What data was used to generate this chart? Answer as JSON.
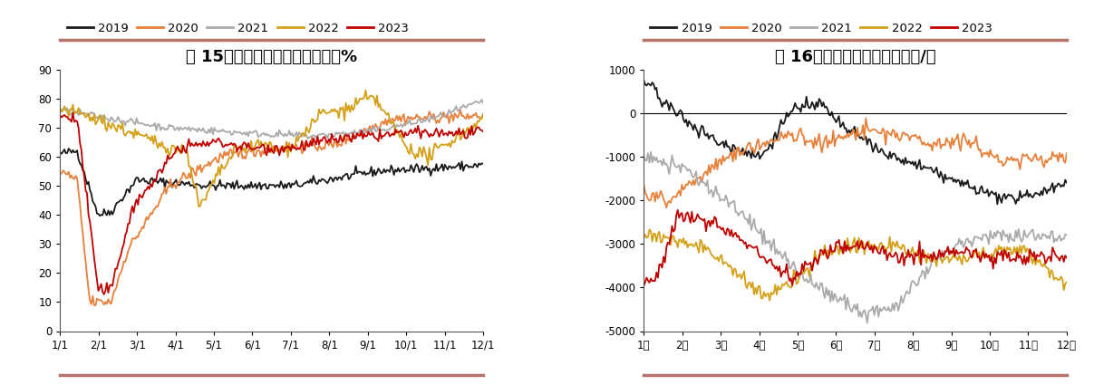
{
  "fig15": {
    "title": "图 15：铅蓄电池开工率｜单位：%",
    "xlim_labels": [
      "1/1",
      "2/1",
      "3/1",
      "4/1",
      "5/1",
      "6/1",
      "7/1",
      "8/1",
      "9/1",
      "10/1",
      "11/1",
      "12/1"
    ],
    "ylim": [
      0,
      90
    ],
    "yticks": [
      0,
      10,
      20,
      30,
      40,
      50,
      60,
      70,
      80,
      90
    ],
    "colors": {
      "2019": "#1a1a1a",
      "2020": "#E8803A",
      "2021": "#AAAAAA",
      "2022": "#D4A017",
      "2023": "#C00000"
    }
  },
  "fig16": {
    "title": "图 16：铅进口盈亏｜单位：元/吨",
    "xlim_labels": [
      "1月",
      "2月",
      "3月",
      "4月",
      "5月",
      "6月",
      "7月",
      "8月",
      "9月",
      "10月",
      "11月",
      "12月"
    ],
    "ylim": [
      -5000,
      1000
    ],
    "yticks": [
      -5000,
      -4000,
      -3000,
      -2000,
      -1000,
      0,
      1000
    ],
    "colors": {
      "2019": "#1a1a1a",
      "2020": "#E8803A",
      "2021": "#AAAAAA",
      "2022": "#D4A017",
      "2023": "#C00000"
    }
  },
  "legend_years": [
    "2019",
    "2020",
    "2021",
    "2022",
    "2023"
  ],
  "title_fontsize": 13,
  "label_fontsize": 8.5,
  "legend_fontsize": 9.5,
  "line_width": 1.3,
  "title_bar_color": "#B5736A",
  "background_color": "#FFFFFF"
}
